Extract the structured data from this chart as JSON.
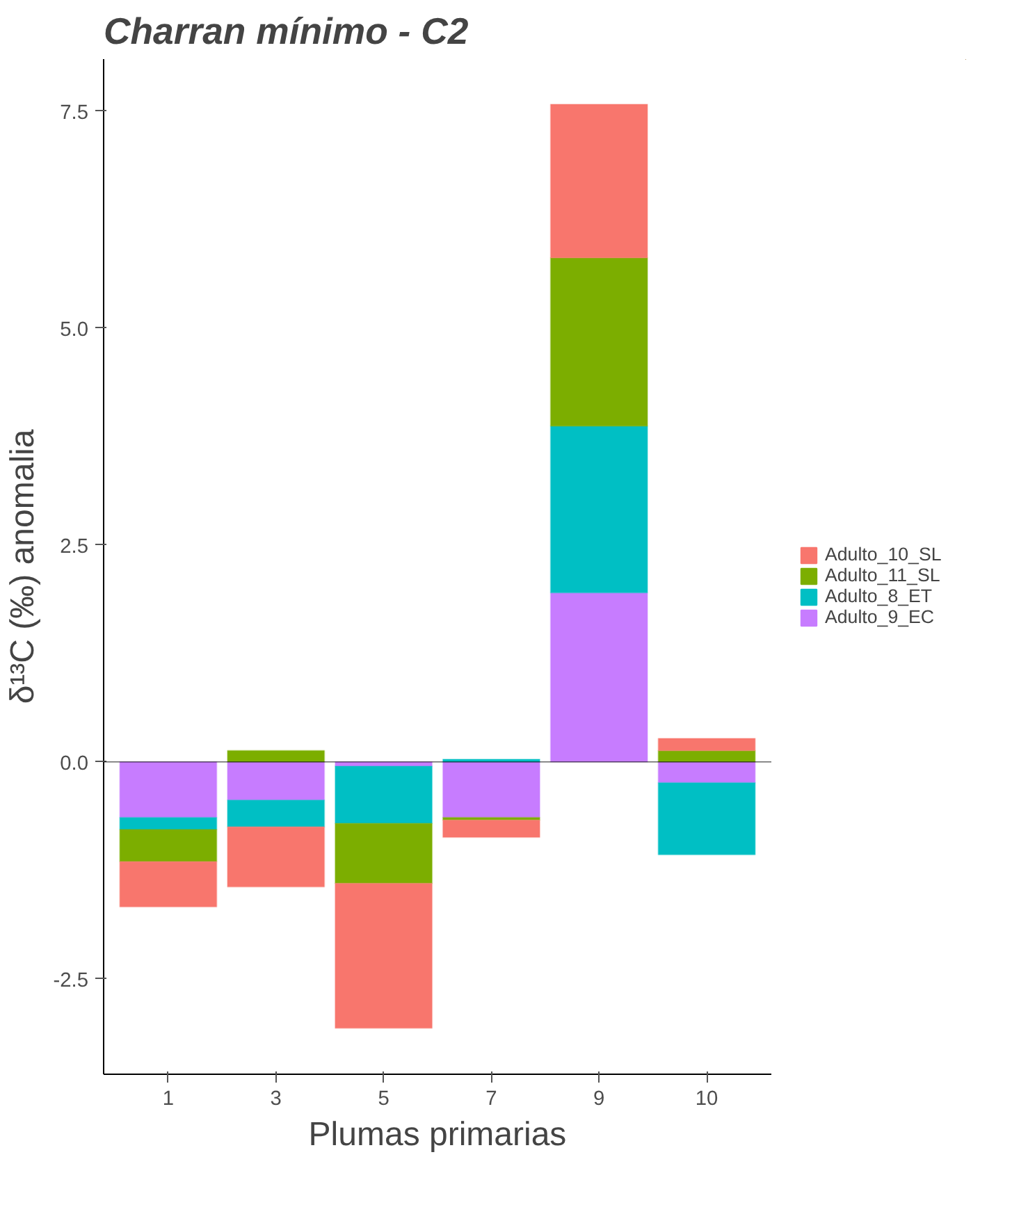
{
  "chart_data": {
    "type": "bar",
    "title": "Charran mínimo - C2",
    "xlabel": "Plumas primarias",
    "ylabel": "δ¹³C (‰) anomalia",
    "categories": [
      "1",
      "3",
      "5",
      "7",
      "9",
      "10"
    ],
    "stacked": true,
    "series": [
      {
        "name": "Adulto_9_EC",
        "color": "#c77cff",
        "values": [
          -0.64,
          -0.44,
          -0.05,
          -0.64,
          1.95,
          -0.24
        ]
      },
      {
        "name": "Adulto_8_ET",
        "color": "#00bfc4",
        "values": [
          -0.14,
          -0.31,
          -0.66,
          0.03,
          1.92,
          -0.83
        ]
      },
      {
        "name": "Adulto_11_SL",
        "color": "#7cae00",
        "values": [
          -0.37,
          0.13,
          -0.69,
          -0.03,
          1.94,
          0.13
        ]
      },
      {
        "name": "Adulto_10_SL",
        "color": "#f8766d",
        "values": [
          -0.52,
          -0.69,
          -1.67,
          -0.2,
          1.77,
          0.14
        ]
      }
    ],
    "ylim": [
      -3.6,
      8.1
    ],
    "yticks": [
      {
        "value": -2.5,
        "label": "-2.5"
      },
      {
        "value": 0,
        "label": "0.0"
      },
      {
        "value": 2.5,
        "label": "2.5"
      },
      {
        "value": 5,
        "label": "5.0"
      },
      {
        "value": 7.5,
        "label": "7.5"
      }
    ],
    "ref_lines": [
      {
        "axis": "y",
        "value": 0,
        "color": "#000000"
      }
    ],
    "grid": false,
    "legend": "right"
  }
}
